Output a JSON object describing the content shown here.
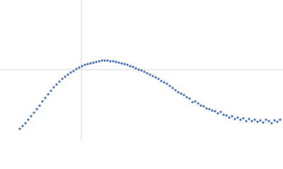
{
  "chart_data": {
    "type": "scatter",
    "x": [
      28,
      32,
      36,
      40,
      44,
      48,
      52,
      56,
      60,
      64,
      68,
      72,
      76,
      80,
      84,
      88,
      92,
      96,
      100,
      104,
      108,
      112,
      116,
      120,
      124,
      128,
      132,
      136,
      140,
      144,
      148,
      152,
      156,
      160,
      164,
      168,
      172,
      176,
      180,
      184,
      188,
      192,
      196,
      200,
      204,
      208,
      212,
      216,
      220,
      224,
      228,
      232,
      236,
      240,
      244,
      248,
      252,
      256,
      260,
      264,
      268,
      272,
      276,
      280,
      284,
      288,
      292,
      296,
      300,
      304,
      308,
      312,
      316,
      320,
      324,
      328,
      332,
      336,
      340,
      344,
      348,
      352,
      356,
      360,
      364,
      368,
      372,
      376,
      380,
      384,
      388,
      392,
      396
    ],
    "series": [
      {
        "color": "#4a72b8",
        "values": [
          17,
          21,
          25,
          30,
          35,
          40,
          45,
          50,
          56,
          61,
          66,
          71,
          76,
          80,
          84,
          88,
          91,
          94,
          97,
          99,
          102,
          104,
          106,
          108,
          109,
          110,
          111,
          112,
          113,
          114,
          114,
          114,
          113,
          113,
          112,
          111,
          110,
          109,
          108,
          106,
          105,
          103,
          101,
          100,
          98,
          96,
          94,
          92,
          90,
          88,
          85,
          83,
          81,
          78,
          75,
          72,
          69,
          67,
          65,
          62,
          60,
          55,
          56,
          53,
          50,
          49,
          46,
          45,
          43,
          42,
          39,
          41,
          37,
          36,
          33,
          35,
          31,
          33,
          30,
          32,
          28,
          31,
          28,
          30,
          27,
          29,
          26,
          30,
          28,
          25,
          29,
          27,
          30
        ]
      }
    ],
    "xlim": [
      0,
      400
    ],
    "ylim": [
      0,
      200
    ],
    "xticks": [
      115
    ],
    "yticks": [
      101
    ],
    "grid": true
  }
}
